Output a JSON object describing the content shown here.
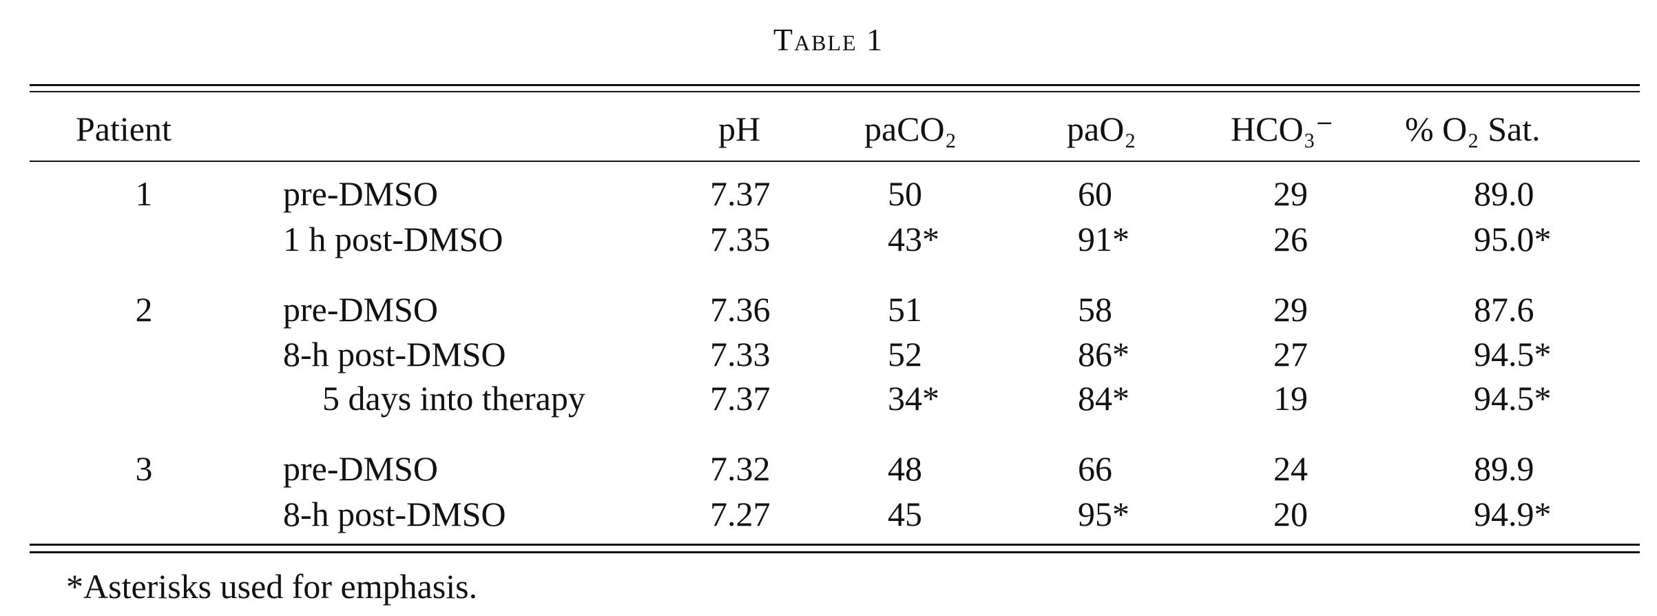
{
  "title": "Table 1",
  "table": {
    "header": [
      "Patient",
      "pH",
      "paCO₂",
      "paO₂",
      "HCO₃⁻",
      "% O₂ Sat."
    ],
    "groups": [
      {
        "patient": "1",
        "rows": [
          [
            "pre-DMSO",
            "7.37",
            "50",
            "60",
            "29",
            "89.0"
          ],
          [
            "1 h post-DMSO",
            "7.35",
            "43*",
            "91*",
            "26",
            "95.0*"
          ]
        ]
      },
      {
        "patient": "2",
        "rows": [
          [
            "pre-DMSO",
            "7.36",
            "51",
            "58",
            "29",
            "87.6"
          ],
          [
            "8-h post-DMSO",
            "7.33",
            "52",
            "86*",
            "27",
            "94.5*"
          ],
          [
            "5 days into therapy",
            "7.37",
            "34*",
            "84*",
            "19",
            "94.5*"
          ]
        ]
      },
      {
        "patient": "3",
        "rows": [
          [
            "pre-DMSO",
            "7.32",
            "48",
            "66",
            "24",
            "89.9"
          ],
          [
            "8-h post-DMSO",
            "7.27",
            "45",
            "95*",
            "20",
            "94.9*"
          ]
        ]
      }
    ]
  },
  "footnote": "*Asterisks used for emphasis."
}
